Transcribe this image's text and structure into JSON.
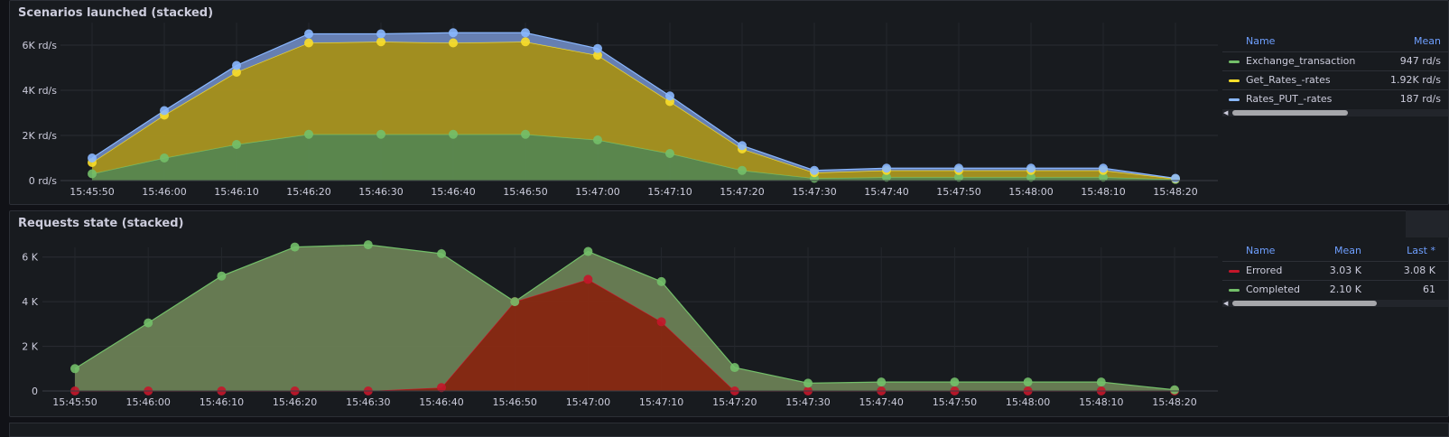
{
  "panels": [
    {
      "title": "Scenarios launched (stacked)",
      "legend": {
        "headers": [
          "Name",
          "Mean"
        ],
        "rows": [
          {
            "name": "Exchange_transaction",
            "color": "#73bf69",
            "values": [
              "947 rd/s"
            ]
          },
          {
            "name": "Get_Rates_-rates",
            "color": "#fade2a",
            "values": [
              "1.92K rd/s"
            ]
          },
          {
            "name": "Rates_PUT_-rates",
            "color": "#8ab8ff",
            "values": [
              "187 rd/s"
            ]
          }
        ]
      }
    },
    {
      "title": "Requests state (stacked)",
      "legend": {
        "headers": [
          "Name",
          "Mean",
          "Last *"
        ],
        "rows": [
          {
            "name": "Errored",
            "color": "#c4162a",
            "values": [
              "3.03 K",
              "3.08 K"
            ]
          },
          {
            "name": "Completed",
            "color": "#73bf69",
            "values": [
              "2.10 K",
              "61"
            ]
          }
        ]
      }
    }
  ],
  "chart_data": [
    {
      "type": "area",
      "stacked": true,
      "title": "Scenarios launched (stacked)",
      "x": [
        "15:45:50",
        "15:46:00",
        "15:46:10",
        "15:46:20",
        "15:46:30",
        "15:46:40",
        "15:46:50",
        "15:47:00",
        "15:47:10",
        "15:47:20",
        "15:47:30",
        "15:47:40",
        "15:47:50",
        "15:48:00",
        "15:48:10",
        "15:48:20"
      ],
      "yticks": [
        "0 rd/s",
        "2K rd/s",
        "4K rd/s",
        "6K rd/s"
      ],
      "ylim": [
        0,
        7000
      ],
      "series": [
        {
          "name": "Exchange_transaction",
          "color": "#73bf69",
          "fill": "#5e8c50",
          "values": [
            300,
            1000,
            1600,
            2050,
            2050,
            2050,
            2050,
            1800,
            1200,
            450,
            100,
            150,
            150,
            150,
            150,
            50
          ]
        },
        {
          "name": "Get_Rates_-rates",
          "color": "#fade2a",
          "fill": "#a99521",
          "values": [
            500,
            1900,
            3200,
            4050,
            4100,
            4050,
            4100,
            3750,
            2300,
            950,
            250,
            300,
            300,
            300,
            300,
            30
          ]
        },
        {
          "name": "Rates_PUT_-rates",
          "color": "#8ab8ff",
          "fill": "#6a85bb",
          "values": [
            200,
            200,
            300,
            400,
            350,
            450,
            400,
            300,
            250,
            150,
            100,
            100,
            100,
            100,
            100,
            20
          ]
        }
      ]
    },
    {
      "type": "area",
      "stacked": true,
      "title": "Requests state (stacked)",
      "x": [
        "15:45:50",
        "15:46:00",
        "15:46:10",
        "15:46:20",
        "15:46:30",
        "15:46:40",
        "15:46:50",
        "15:47:00",
        "15:47:10",
        "15:47:20",
        "15:47:30",
        "15:47:40",
        "15:47:50",
        "15:48:00",
        "15:48:10",
        "15:48:20"
      ],
      "yticks": [
        "0",
        "2 K",
        "4 K",
        "6 K"
      ],
      "ylim": [
        0,
        7000
      ],
      "series": [
        {
          "name": "Errored",
          "color": "#c4162a",
          "fill": "#8a2a13",
          "values": [
            0,
            0,
            0,
            0,
            0,
            150,
            4000,
            5000,
            3100,
            0,
            0,
            0,
            0,
            0,
            0,
            0
          ]
        },
        {
          "name": "Completed",
          "color": "#73bf69",
          "fill": "#6a8055",
          "values": [
            1000,
            3050,
            5150,
            6450,
            6550,
            6000,
            0,
            1250,
            1800,
            1050,
            350,
            400,
            400,
            400,
            400,
            50
          ]
        }
      ]
    }
  ]
}
